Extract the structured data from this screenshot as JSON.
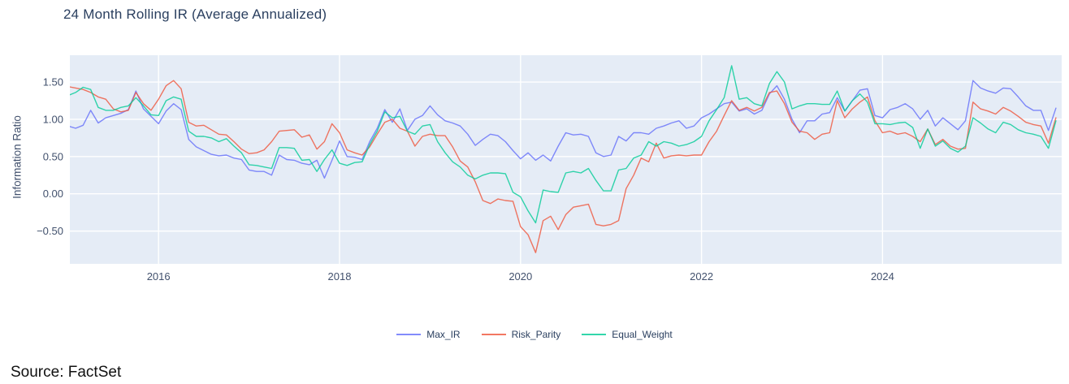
{
  "title": "24 Month Rolling IR (Average Annualized)",
  "source_note": "Source: FactSet",
  "colors": {
    "max_ir": "#636efa",
    "risk_parity": "#ef553b",
    "equal_weight": "#00cc96",
    "plot_bg": "#e5ecf6",
    "grid": "#ffffff",
    "title_text": "#2a3f5f",
    "tick_text": "#42516d"
  },
  "chart_data": {
    "type": "line",
    "title": "24 Month Rolling IR (Average Annualized)",
    "xlabel": "",
    "ylabel": "Information Ratio",
    "x_start_year": 2015.0,
    "x_step_months": 1,
    "x_range": [
      2015.02,
      2025.98
    ],
    "y_range": [
      -0.94,
      1.86
    ],
    "x_ticks": [
      2016,
      2018,
      2020,
      2022,
      2024
    ],
    "x_tick_labels": [
      "2016",
      "2018",
      "2020",
      "2022",
      "2024"
    ],
    "y_ticks": [
      1.5,
      1.0,
      0.5,
      0.0,
      -0.5
    ],
    "y_tick_labels": [
      "1.50",
      "1.00",
      "0.50",
      "0.00",
      "−0.50"
    ],
    "grid": true,
    "legend_position": "bottom-center",
    "series": [
      {
        "name": "Max_IR",
        "color": "#636efa",
        "values": [
          0.91,
          0.88,
          0.92,
          1.12,
          0.95,
          1.02,
          1.05,
          1.08,
          1.13,
          1.38,
          1.14,
          1.04,
          0.94,
          1.11,
          1.21,
          1.13,
          0.73,
          0.63,
          0.58,
          0.53,
          0.51,
          0.52,
          0.48,
          0.46,
          0.32,
          0.3,
          0.3,
          0.25,
          0.52,
          0.46,
          0.45,
          0.41,
          0.39,
          0.45,
          0.21,
          0.45,
          0.71,
          0.5,
          0.49,
          0.46,
          0.7,
          0.88,
          1.13,
          0.96,
          1.14,
          0.85,
          1.0,
          1.05,
          1.18,
          1.06,
          0.98,
          0.95,
          0.91,
          0.8,
          0.65,
          0.73,
          0.8,
          0.78,
          0.7,
          0.58,
          0.47,
          0.55,
          0.45,
          0.52,
          0.44,
          0.64,
          0.82,
          0.79,
          0.8,
          0.77,
          0.55,
          0.5,
          0.52,
          0.77,
          0.71,
          0.82,
          0.82,
          0.8,
          0.88,
          0.91,
          0.95,
          0.98,
          0.88,
          0.91,
          1.02,
          1.07,
          1.14,
          1.21,
          1.23,
          1.11,
          1.14,
          1.07,
          1.12,
          1.34,
          1.45,
          1.27,
          1.0,
          0.82,
          0.98,
          0.98,
          1.07,
          1.09,
          1.29,
          1.11,
          1.25,
          1.39,
          1.41,
          1.05,
          1.02,
          1.13,
          1.16,
          1.21,
          1.14,
          1.0,
          1.12,
          0.91,
          1.02,
          0.94,
          0.86,
          0.98,
          1.52,
          1.42,
          1.38,
          1.35,
          1.42,
          1.41,
          1.3,
          1.18,
          1.12,
          1.12,
          0.85,
          1.15
        ]
      },
      {
        "name": "Risk_Parity",
        "color": "#ef553b",
        "values": [
          1.44,
          1.42,
          1.4,
          1.36,
          1.3,
          1.27,
          1.14,
          1.1,
          1.12,
          1.36,
          1.21,
          1.12,
          1.27,
          1.45,
          1.52,
          1.41,
          0.96,
          0.91,
          0.92,
          0.86,
          0.8,
          0.79,
          0.7,
          0.6,
          0.54,
          0.55,
          0.59,
          0.7,
          0.84,
          0.85,
          0.86,
          0.76,
          0.79,
          0.6,
          0.7,
          0.94,
          0.82,
          0.59,
          0.55,
          0.52,
          0.63,
          0.8,
          0.96,
          1.0,
          0.88,
          0.84,
          0.64,
          0.77,
          0.8,
          0.78,
          0.78,
          0.63,
          0.44,
          0.36,
          0.16,
          -0.09,
          -0.13,
          -0.07,
          -0.09,
          -0.1,
          -0.44,
          -0.55,
          -0.79,
          -0.36,
          -0.3,
          -0.48,
          -0.28,
          -0.18,
          -0.16,
          -0.14,
          -0.41,
          -0.43,
          -0.41,
          -0.36,
          0.07,
          0.25,
          0.48,
          0.43,
          0.68,
          0.48,
          0.51,
          0.52,
          0.51,
          0.52,
          0.52,
          0.7,
          0.84,
          1.05,
          1.25,
          1.12,
          1.16,
          1.11,
          1.16,
          1.36,
          1.38,
          1.21,
          0.96,
          0.84,
          0.82,
          0.73,
          0.8,
          0.82,
          1.25,
          1.02,
          1.14,
          1.23,
          1.3,
          0.98,
          0.82,
          0.84,
          0.8,
          0.82,
          0.77,
          0.7,
          0.87,
          0.66,
          0.73,
          0.64,
          0.6,
          0.61,
          1.23,
          1.14,
          1.11,
          1.07,
          1.16,
          1.11,
          1.04,
          0.96,
          0.93,
          0.91,
          0.68,
          1.02
        ]
      },
      {
        "name": "Equal_Weight",
        "color": "#00cc96",
        "values": [
          1.32,
          1.36,
          1.43,
          1.4,
          1.16,
          1.12,
          1.12,
          1.16,
          1.18,
          1.29,
          1.18,
          1.06,
          1.05,
          1.25,
          1.3,
          1.27,
          0.84,
          0.77,
          0.77,
          0.75,
          0.7,
          0.74,
          0.64,
          0.55,
          0.39,
          0.38,
          0.36,
          0.34,
          0.62,
          0.62,
          0.61,
          0.45,
          0.46,
          0.3,
          0.46,
          0.59,
          0.41,
          0.38,
          0.42,
          0.43,
          0.66,
          0.84,
          1.1,
          1.02,
          1.04,
          0.84,
          0.8,
          0.91,
          0.93,
          0.7,
          0.55,
          0.43,
          0.36,
          0.25,
          0.2,
          0.25,
          0.28,
          0.28,
          0.27,
          0.02,
          -0.04,
          -0.23,
          -0.39,
          0.05,
          0.03,
          0.02,
          0.28,
          0.3,
          0.28,
          0.34,
          0.18,
          0.04,
          0.04,
          0.32,
          0.34,
          0.48,
          0.52,
          0.7,
          0.64,
          0.7,
          0.68,
          0.64,
          0.66,
          0.7,
          0.77,
          0.98,
          1.13,
          1.29,
          1.72,
          1.27,
          1.29,
          1.21,
          1.18,
          1.48,
          1.64,
          1.5,
          1.14,
          1.18,
          1.21,
          1.21,
          1.2,
          1.2,
          1.38,
          1.11,
          1.25,
          1.34,
          1.23,
          0.94,
          0.94,
          0.93,
          0.95,
          0.96,
          0.89,
          0.61,
          0.87,
          0.64,
          0.71,
          0.61,
          0.56,
          0.64,
          1.02,
          0.95,
          0.87,
          0.82,
          0.96,
          0.93,
          0.86,
          0.82,
          0.8,
          0.77,
          0.61,
          0.98
        ]
      }
    ]
  }
}
